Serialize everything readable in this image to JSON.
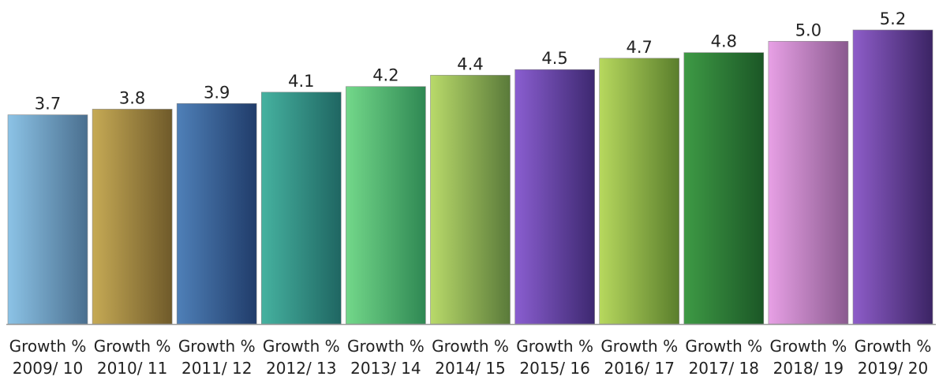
{
  "chart_data": {
    "type": "bar",
    "title": "",
    "xlabel": "",
    "ylabel": "",
    "categories": [
      [
        "Growth %",
        "2009/ 10"
      ],
      [
        "Growth %",
        "2010/ 11"
      ],
      [
        "Growth %",
        "2011/ 12"
      ],
      [
        "Growth %",
        "2012/ 13"
      ],
      [
        "Growth %",
        "2013/ 14"
      ],
      [
        "Growth %",
        "2014/ 15"
      ],
      [
        "Growth %",
        "2015/ 16"
      ],
      [
        "Growth %",
        "2016/ 17"
      ],
      [
        "Growth %",
        "2017/ 18"
      ],
      [
        "Growth %",
        "2018/ 19"
      ],
      [
        "Growth %",
        "2019/ 20"
      ]
    ],
    "values": [
      3.7,
      3.8,
      3.9,
      4.1,
      4.2,
      4.4,
      4.5,
      4.7,
      4.8,
      5.0,
      5.2
    ],
    "data_labels": [
      "3.7",
      "3.8",
      "3.9",
      "4.1",
      "4.2",
      "4.4",
      "4.5",
      "4.7",
      "4.8",
      "5.0",
      "5.2"
    ],
    "bar_colors": [
      [
        "#8cc3e6",
        "#4a6f8f"
      ],
      [
        "#c6aa55",
        "#6f5a2a"
      ],
      [
        "#4f80b8",
        "#203c6a"
      ],
      [
        "#46b2a0",
        "#1f6662"
      ],
      [
        "#73d88a",
        "#2f8853"
      ],
      [
        "#b9da6a",
        "#5a7a3a"
      ],
      [
        "#8a5ed0",
        "#3d2870"
      ],
      [
        "#b7d85e",
        "#5a7e2c"
      ],
      [
        "#3e9a45",
        "#1b5726"
      ],
      [
        "#e7a0e5",
        "#8a5a8f"
      ],
      [
        "#8e5dc9",
        "#3b2464"
      ]
    ],
    "baseline_color": "#9a9a9a",
    "ylim": [
      0,
      5.2
    ],
    "grid": false,
    "legend": "none"
  }
}
